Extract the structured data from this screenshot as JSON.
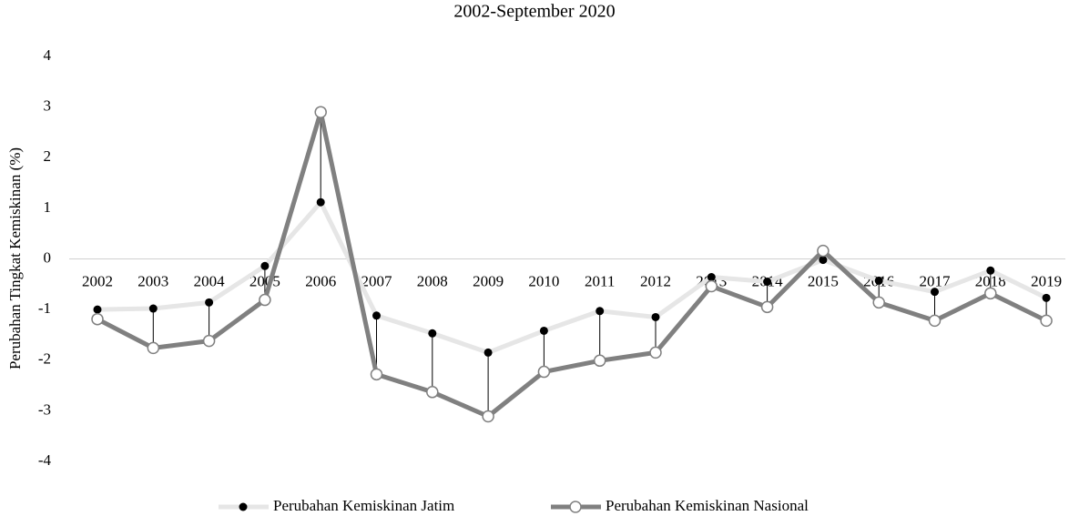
{
  "chart_data": {
    "type": "line",
    "title": "2002-September 2020",
    "y_label": "Perubahan Tingkat Kemiskinan (%)",
    "categories": [
      "2002",
      "2003",
      "2004",
      "2005",
      "2006",
      "2007",
      "2008",
      "2009",
      "2010",
      "2011",
      "2012",
      "2013",
      "2014",
      "2015",
      "2016",
      "2017",
      "2018",
      "2019"
    ],
    "series": [
      {
        "name": "Perubahan Kemiskinan Jatim",
        "color": "#e6e6e6",
        "marker_color": "#000000",
        "values": [
          -1.0,
          -0.98,
          -0.86,
          -0.14,
          1.12,
          -1.12,
          -1.47,
          -1.85,
          -1.42,
          -1.03,
          -1.15,
          -0.36,
          -0.45,
          -0.02,
          -0.43,
          -0.65,
          -0.23,
          -0.77
        ]
      },
      {
        "name": "Perubahan Kemiskinan Nasional",
        "color": "#808080",
        "marker_color": "#ffffff",
        "values": [
          -1.19,
          -1.76,
          -1.62,
          -0.81,
          2.9,
          -2.28,
          -2.63,
          -3.11,
          -2.23,
          -2.01,
          -1.85,
          -0.54,
          -0.95,
          0.16,
          -0.86,
          -1.22,
          -0.68,
          -1.22
        ]
      }
    ],
    "ylim": [
      -4,
      4
    ],
    "yticks": [
      -4,
      -3,
      -2,
      -1,
      0,
      1,
      2,
      3,
      4
    ],
    "legend": "bottom"
  }
}
